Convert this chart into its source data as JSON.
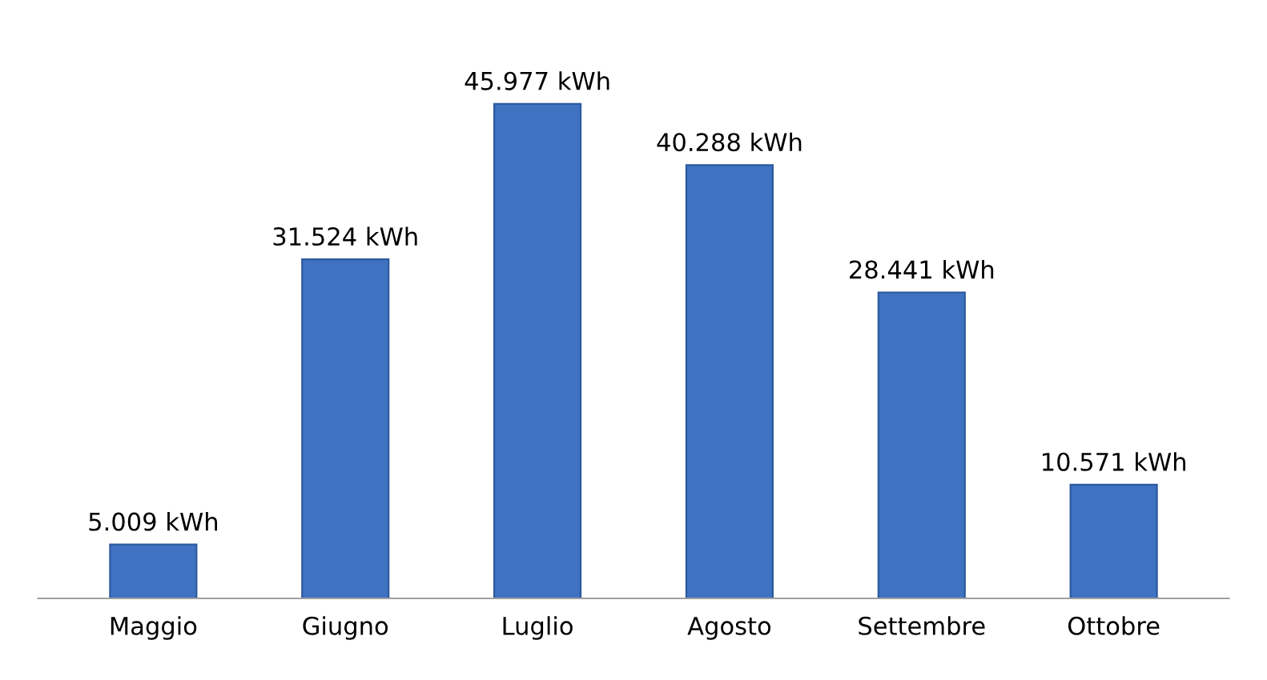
{
  "chart_data": {
    "type": "bar",
    "categories": [
      "Maggio",
      "Giugno",
      "Luglio",
      "Agosto",
      "Settembre",
      "Ottobre"
    ],
    "values": [
      5009,
      31524,
      45977,
      40288,
      28441,
      10571
    ],
    "value_labels": [
      "5.009 kWh",
      "31.524 kWh",
      "45.977 kWh",
      "40.288 kWh",
      "28.441 kWh",
      "10.571 kWh"
    ],
    "color": "#3f73c1",
    "tick_labels": "x",
    "grid": false,
    "legend": false
  }
}
